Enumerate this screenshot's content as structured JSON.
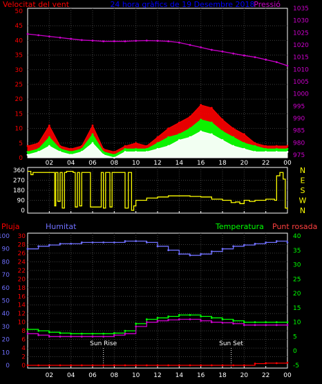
{
  "chart_data": [
    {
      "type": "line",
      "title": "24 hora gràfics de 19 Desembre 2018",
      "left_axis_label": "Velocitat del vent",
      "right_axis_label": "Pressió",
      "left_ticks": [
        0,
        5,
        10,
        15,
        20,
        25,
        30,
        35,
        40,
        45,
        50
      ],
      "right_ticks": [
        975,
        980,
        985,
        990,
        995,
        1000,
        1005,
        1010,
        1015,
        1020,
        1025,
        1030,
        1035
      ],
      "x_ticks": [
        "02",
        "04",
        "06",
        "08",
        "10",
        "12",
        "14",
        "16",
        "18",
        "20",
        "22",
        "00"
      ],
      "x": [
        0,
        1,
        2,
        3,
        4,
        5,
        6,
        7,
        8,
        9,
        10,
        11,
        12,
        13,
        14,
        15,
        16,
        17,
        18,
        19,
        20,
        21,
        22,
        23,
        24
      ],
      "series": [
        {
          "name": "",
          "axis": "left",
          "color": "#ff0000",
          "values": [
            4,
            5,
            11,
            4,
            3,
            4,
            11,
            3,
            2,
            4,
            5,
            4,
            7,
            10,
            12,
            14,
            18,
            17,
            13,
            10,
            8,
            5,
            4,
            4,
            4
          ]
        },
        {
          "name": "",
          "axis": "left",
          "color": "#00ff00",
          "values": [
            2,
            3,
            7,
            3,
            2,
            3,
            8,
            2,
            1,
            3,
            3,
            3,
            5,
            7,
            8,
            10,
            13,
            12,
            9,
            7,
            5,
            4,
            3,
            3,
            3
          ]
        },
        {
          "name": "",
          "axis": "left",
          "color": "#ffffff",
          "values": [
            1,
            2,
            4,
            2,
            1,
            2,
            5,
            1,
            0,
            2,
            2,
            2,
            3,
            4,
            6,
            7,
            9,
            8,
            6,
            4,
            3,
            2,
            2,
            2,
            2
          ]
        },
        {
          "name": "Pressió",
          "axis": "right",
          "color": "#cc00cc",
          "values": [
            1024.5,
            1024.0,
            1023.5,
            1023.0,
            1022.5,
            1022.0,
            1021.8,
            1021.5,
            1021.5,
            1021.5,
            1021.7,
            1021.8,
            1021.7,
            1021.5,
            1021.0,
            1020.0,
            1019.0,
            1018.0,
            1017.3,
            1016.5,
            1015.7,
            1015.0,
            1014.0,
            1013.0,
            1011.5
          ]
        }
      ]
    },
    {
      "type": "line",
      "left_ticks": [
        0,
        90,
        180,
        270,
        360
      ],
      "right_ticks": [
        "N",
        "W",
        "S",
        "E",
        "N"
      ],
      "ylim": [
        0,
        360
      ],
      "series": [
        {
          "name": "",
          "color": "#ffff00",
          "x": [
            0,
            0.3,
            0.5,
            2.3,
            2.5,
            2.6,
            2.8,
            3.0,
            3.2,
            3.4,
            3.6,
            4.2,
            4.4,
            4.6,
            4.8,
            5.0,
            5.2,
            5.6,
            5.8,
            6.8,
            7.0,
            7.2,
            7.4,
            7.6,
            7.8,
            8.8,
            9.0,
            9.3,
            9.6,
            9.8,
            10.0,
            11.0,
            12.0,
            13.0,
            14.0,
            15.0,
            16.0,
            17.0,
            18.0,
            18.8,
            19.2,
            19.6,
            20.0,
            20.5,
            21.0,
            22.0,
            22.8,
            23.0,
            23.3,
            23.6,
            23.8,
            24.0
          ],
          "values": [
            350,
            320,
            340,
            340,
            40,
            340,
            80,
            340,
            20,
            340,
            350,
            340,
            30,
            340,
            40,
            340,
            340,
            340,
            30,
            340,
            20,
            340,
            340,
            30,
            340,
            340,
            20,
            340,
            0,
            40,
            90,
            110,
            120,
            130,
            130,
            125,
            120,
            100,
            90,
            70,
            75,
            60,
            90,
            80,
            90,
            100,
            90,
            310,
            340,
            280,
            20,
            10
          ]
        }
      ]
    },
    {
      "type": "line",
      "title_labels": [
        "Pluja",
        "Humitat",
        "Temperatura",
        "Punt rosada"
      ],
      "pluja_ticks": [
        0,
        2,
        4,
        6,
        8,
        10,
        12,
        14,
        16,
        18,
        20,
        22,
        24,
        26,
        28,
        30
      ],
      "humitat_ticks": [
        0,
        10,
        20,
        30,
        40,
        50,
        60,
        70,
        80,
        90,
        100
      ],
      "temp_ticks": [
        -5,
        0,
        5,
        10,
        15,
        20,
        25,
        30,
        35,
        40
      ],
      "x_ticks": [
        "02",
        "04",
        "06",
        "08",
        "10",
        "12",
        "14",
        "16",
        "18",
        "20",
        "22",
        "00"
      ],
      "annotations": [
        "Sun Rise",
        "Sun Set"
      ],
      "annotation_x": [
        7.0,
        18.8
      ],
      "x": [
        0,
        1,
        2,
        3,
        4,
        5,
        6,
        7,
        8,
        9,
        10,
        11,
        12,
        13,
        14,
        15,
        16,
        17,
        18,
        19,
        20,
        21,
        22,
        23,
        24
      ],
      "series": [
        {
          "name": "Humitat",
          "axis": "humitat",
          "color": "#7070ff",
          "values": [
            90,
            92,
            93,
            94,
            94,
            95,
            95,
            95,
            95,
            96,
            96,
            95,
            92,
            89,
            86,
            85,
            86,
            88,
            90,
            92,
            93,
            94,
            95,
            96,
            95
          ]
        },
        {
          "name": "Temperatura",
          "axis": "temp",
          "color": "#00ff00",
          "values": [
            7.5,
            7.0,
            6.5,
            6.2,
            6.0,
            6.0,
            6.0,
            6.0,
            6.2,
            7.0,
            9.5,
            11.0,
            11.5,
            12.0,
            12.5,
            12.5,
            12.0,
            11.5,
            11.0,
            10.5,
            10.0,
            10.0,
            10.0,
            10.0,
            10.0
          ]
        },
        {
          "name": "Punt rosada",
          "axis": "temp",
          "color": "#cc00cc",
          "values": [
            6.0,
            5.5,
            5.0,
            5.0,
            5.0,
            5.0,
            5.0,
            5.0,
            5.5,
            6.0,
            8.5,
            10.0,
            10.5,
            10.8,
            11.0,
            11.0,
            10.5,
            10.0,
            9.8,
            9.5,
            9.0,
            9.0,
            9.0,
            9.0,
            9.0
          ]
        },
        {
          "name": "Pluja",
          "axis": "pluja",
          "color": "#ff0000",
          "values": [
            0,
            0,
            0,
            0,
            0,
            0,
            0,
            0,
            0,
            0,
            0,
            0,
            0,
            0,
            0,
            0,
            0,
            0,
            0,
            0,
            0,
            0.4,
            0.5,
            0.5,
            0.6
          ]
        }
      ]
    }
  ],
  "colors": {
    "wind_label": "#ff0000",
    "title": "#0000ff",
    "pressure": "#cc00cc",
    "wind_dir": "#ffff00",
    "pluja": "#ff0000",
    "humitat": "#7070ff",
    "temperatura": "#00ff00",
    "punt_rosada": "#cc00cc",
    "frame": "#ffffff",
    "grid": "#404040"
  }
}
